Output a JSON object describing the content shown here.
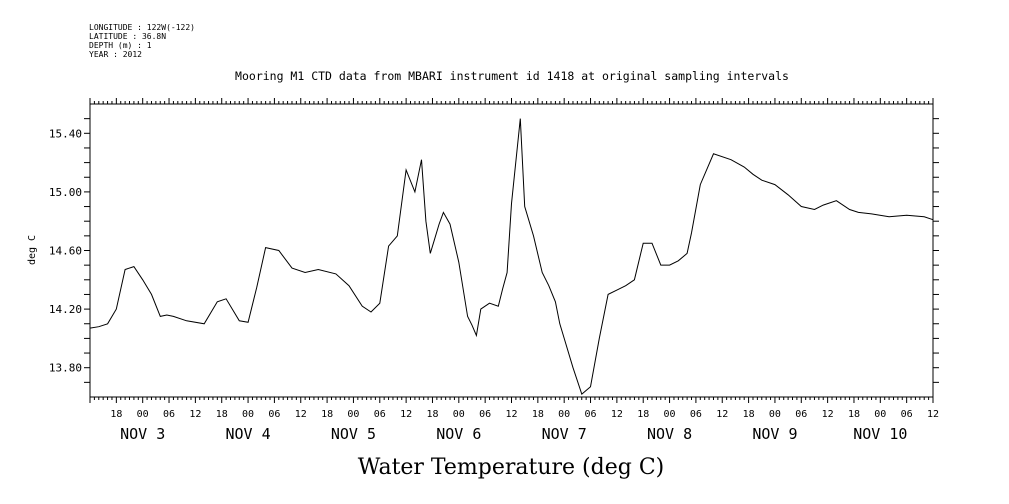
{
  "metadata": {
    "longitude": "LONGITUDE : 122W(-122)",
    "latitude": "LATITUDE : 36.8N",
    "depth": "DEPTH (m) : 1",
    "year": "YEAR : 2012"
  },
  "chart_data": {
    "type": "line",
    "title": "Mooring M1 CTD data from MBARI instrument id 1418 at original sampling intervals",
    "ylabel": "deg C",
    "bottom_title": "Water Temperature (deg C)",
    "xlim": [
      "2012-11-02T12:00",
      "2012-11-10T12:00"
    ],
    "ylim": [
      13.6,
      15.6
    ],
    "yticks": [
      "13.80",
      "14.20",
      "14.60",
      "15.00",
      "15.40"
    ],
    "hour_labels": [
      "18",
      "00",
      "06",
      "12",
      "18",
      "00",
      "06",
      "12",
      "18",
      "00",
      "06",
      "12",
      "18",
      "00",
      "06",
      "12",
      "18",
      "00",
      "06",
      "12",
      "18",
      "00",
      "06",
      "12",
      "18",
      "00",
      "06",
      "12",
      "18",
      "00",
      "06",
      "12"
    ],
    "day_labels": [
      "NOV 3",
      "NOV 4",
      "NOV 5",
      "NOV 6",
      "NOV 7",
      "NOV 8",
      "NOV 9",
      "NOV 10"
    ],
    "series": [
      {
        "x": [
          "2012-11-02T12:00",
          "2012-11-02T14:00",
          "2012-11-02T16:00",
          "2012-11-02T18:00",
          "2012-11-02T20:00",
          "2012-11-02T22:00",
          "2012-11-03T00:00",
          "2012-11-03T02:00",
          "2012-11-03T04:00",
          "2012-11-03T05:30",
          "2012-11-03T07:00",
          "2012-11-03T10:00",
          "2012-11-03T14:00",
          "2012-11-03T17:00",
          "2012-11-03T19:00",
          "2012-11-03T22:00",
          "2012-11-04T00:00",
          "2012-11-04T02:00",
          "2012-11-04T04:00",
          "2012-11-04T07:00",
          "2012-11-04T10:00",
          "2012-11-04T13:00",
          "2012-11-04T16:00",
          "2012-11-04T20:00",
          "2012-11-04T23:00",
          "2012-11-05T02:00",
          "2012-11-05T04:00",
          "2012-11-05T06:00",
          "2012-11-05T08:00",
          "2012-11-05T10:00",
          "2012-11-05T12:00",
          "2012-11-05T14:00",
          "2012-11-05T15:30",
          "2012-11-05T16:30",
          "2012-11-05T17:30",
          "2012-11-05T18:30",
          "2012-11-05T19:30",
          "2012-11-05T20:30",
          "2012-11-05T22:00",
          "2012-11-06T00:00",
          "2012-11-06T02:00",
          "2012-11-06T03:00",
          "2012-11-06T04:00",
          "2012-11-06T05:00",
          "2012-11-06T07:00",
          "2012-11-06T09:00",
          "2012-11-06T10:00",
          "2012-11-06T11:00",
          "2012-11-06T12:00",
          "2012-11-06T14:00",
          "2012-11-06T15:00",
          "2012-11-06T17:00",
          "2012-11-06T19:00",
          "2012-11-06T20:30",
          "2012-11-06T22:00",
          "2012-11-06T23:00",
          "2012-11-07T00:00",
          "2012-11-07T02:00",
          "2012-11-07T04:00",
          "2012-11-07T06:00",
          "2012-11-07T08:00",
          "2012-11-07T10:00",
          "2012-11-07T12:00",
          "2012-11-07T14:00",
          "2012-11-07T16:00",
          "2012-11-07T18:00",
          "2012-11-07T20:00",
          "2012-11-07T22:00",
          "2012-11-08T00:00",
          "2012-11-08T02:00",
          "2012-11-08T04:00",
          "2012-11-08T05:00",
          "2012-11-08T07:00",
          "2012-11-08T10:00",
          "2012-11-08T14:00",
          "2012-11-08T17:00",
          "2012-11-08T19:00",
          "2012-11-08T21:00",
          "2012-11-09T00:00",
          "2012-11-09T03:00",
          "2012-11-09T06:00",
          "2012-11-09T09:00",
          "2012-11-09T11:00",
          "2012-11-09T14:00",
          "2012-11-09T17:00",
          "2012-11-09T19:00",
          "2012-11-09T22:00",
          "2012-11-10T02:00",
          "2012-11-10T06:00",
          "2012-11-10T10:00",
          "2012-11-10T12:00"
        ],
        "y": [
          14.07,
          14.08,
          14.1,
          14.2,
          14.47,
          14.49,
          14.4,
          14.3,
          14.15,
          14.16,
          14.15,
          14.12,
          14.1,
          14.25,
          14.27,
          14.12,
          14.11,
          14.35,
          14.62,
          14.6,
          14.48,
          14.45,
          14.47,
          14.44,
          14.36,
          14.22,
          14.18,
          14.24,
          14.63,
          14.7,
          15.15,
          15.0,
          15.22,
          14.8,
          14.58,
          14.68,
          14.78,
          14.86,
          14.78,
          14.52,
          14.15,
          14.09,
          14.02,
          14.2,
          14.24,
          14.22,
          14.34,
          14.45,
          14.92,
          15.5,
          14.9,
          14.7,
          14.45,
          14.36,
          14.25,
          14.1,
          14.0,
          13.8,
          13.62,
          13.67,
          14.0,
          14.3,
          14.33,
          14.36,
          14.4,
          14.65,
          14.65,
          14.5,
          14.5,
          14.53,
          14.58,
          14.72,
          15.05,
          15.26,
          15.22,
          15.17,
          15.12,
          15.08,
          15.05,
          14.98,
          14.9,
          14.88,
          14.91,
          14.94,
          14.88,
          14.86,
          14.85,
          14.83,
          14.84,
          14.83,
          14.81
        ]
      }
    ]
  }
}
